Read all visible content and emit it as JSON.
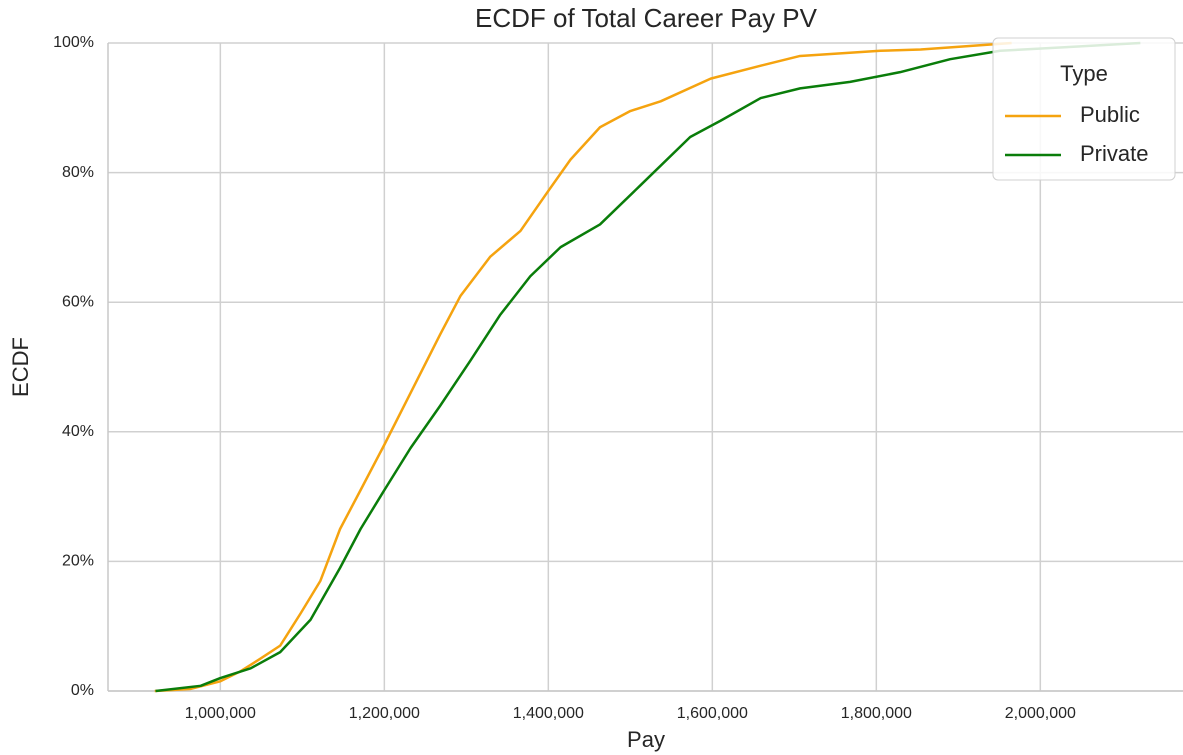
{
  "chart_data": {
    "type": "line",
    "title": "ECDF of Total Career Pay PV",
    "x_label": "Pay",
    "y_label": "ECDF",
    "legend_title": "Type",
    "legend_position": "upper right",
    "grid": true,
    "xlim": [
      863000,
      2174000
    ],
    "ylim": [
      0,
      100
    ],
    "xticks": [
      {
        "value": 1000000,
        "label": "1,000,000"
      },
      {
        "value": 1200000,
        "label": "1,200,000"
      },
      {
        "value": 1400000,
        "label": "1,400,000"
      },
      {
        "value": 1600000,
        "label": "1,600,000"
      },
      {
        "value": 1800000,
        "label": "1,800,000"
      },
      {
        "value": 2000000,
        "label": "2,000,000"
      }
    ],
    "yticks": [
      {
        "value": 0,
        "label": "0%"
      },
      {
        "value": 20,
        "label": "20%"
      },
      {
        "value": 40,
        "label": "40%"
      },
      {
        "value": 60,
        "label": "60%"
      },
      {
        "value": 80,
        "label": "80%"
      },
      {
        "value": 100,
        "label": "100%"
      }
    ],
    "series": [
      {
        "name": "Public",
        "color": "#f5a30f",
        "x": [
          920000,
          963000,
          1000000,
          1024000,
          1049000,
          1073000,
          1098000,
          1122000,
          1146000,
          1171000,
          1200000,
          1232000,
          1268000,
          1293000,
          1329000,
          1366000,
          1399000,
          1427000,
          1463000,
          1500000,
          1537000,
          1598000,
          1659000,
          1707000,
          1805000,
          1854000,
          1965000
        ],
        "values": [
          0,
          0.3,
          1.5,
          3,
          5,
          7,
          12,
          17,
          25,
          31,
          38,
          46,
          55,
          61,
          67,
          71,
          77,
          82,
          87,
          89.5,
          91,
          94.5,
          96.5,
          98,
          98.8,
          99,
          100
        ]
      },
      {
        "name": "Private",
        "color": "#0a7d0a",
        "x": [
          921000,
          976000,
          1000000,
          1037000,
          1073000,
          1110000,
          1146000,
          1171000,
          1200000,
          1232000,
          1268000,
          1305000,
          1341000,
          1378000,
          1415000,
          1463000,
          1512000,
          1573000,
          1610000,
          1659000,
          1707000,
          1768000,
          1829000,
          1890000,
          1951000,
          2024000,
          2122000
        ],
        "values": [
          0,
          0.8,
          2,
          3.5,
          6,
          11,
          19,
          25,
          31,
          37.5,
          44,
          51,
          58,
          64,
          68.5,
          72,
          78,
          85.5,
          88,
          91.5,
          93,
          94,
          95.5,
          97.5,
          98.8,
          99.3,
          100
        ]
      }
    ]
  }
}
